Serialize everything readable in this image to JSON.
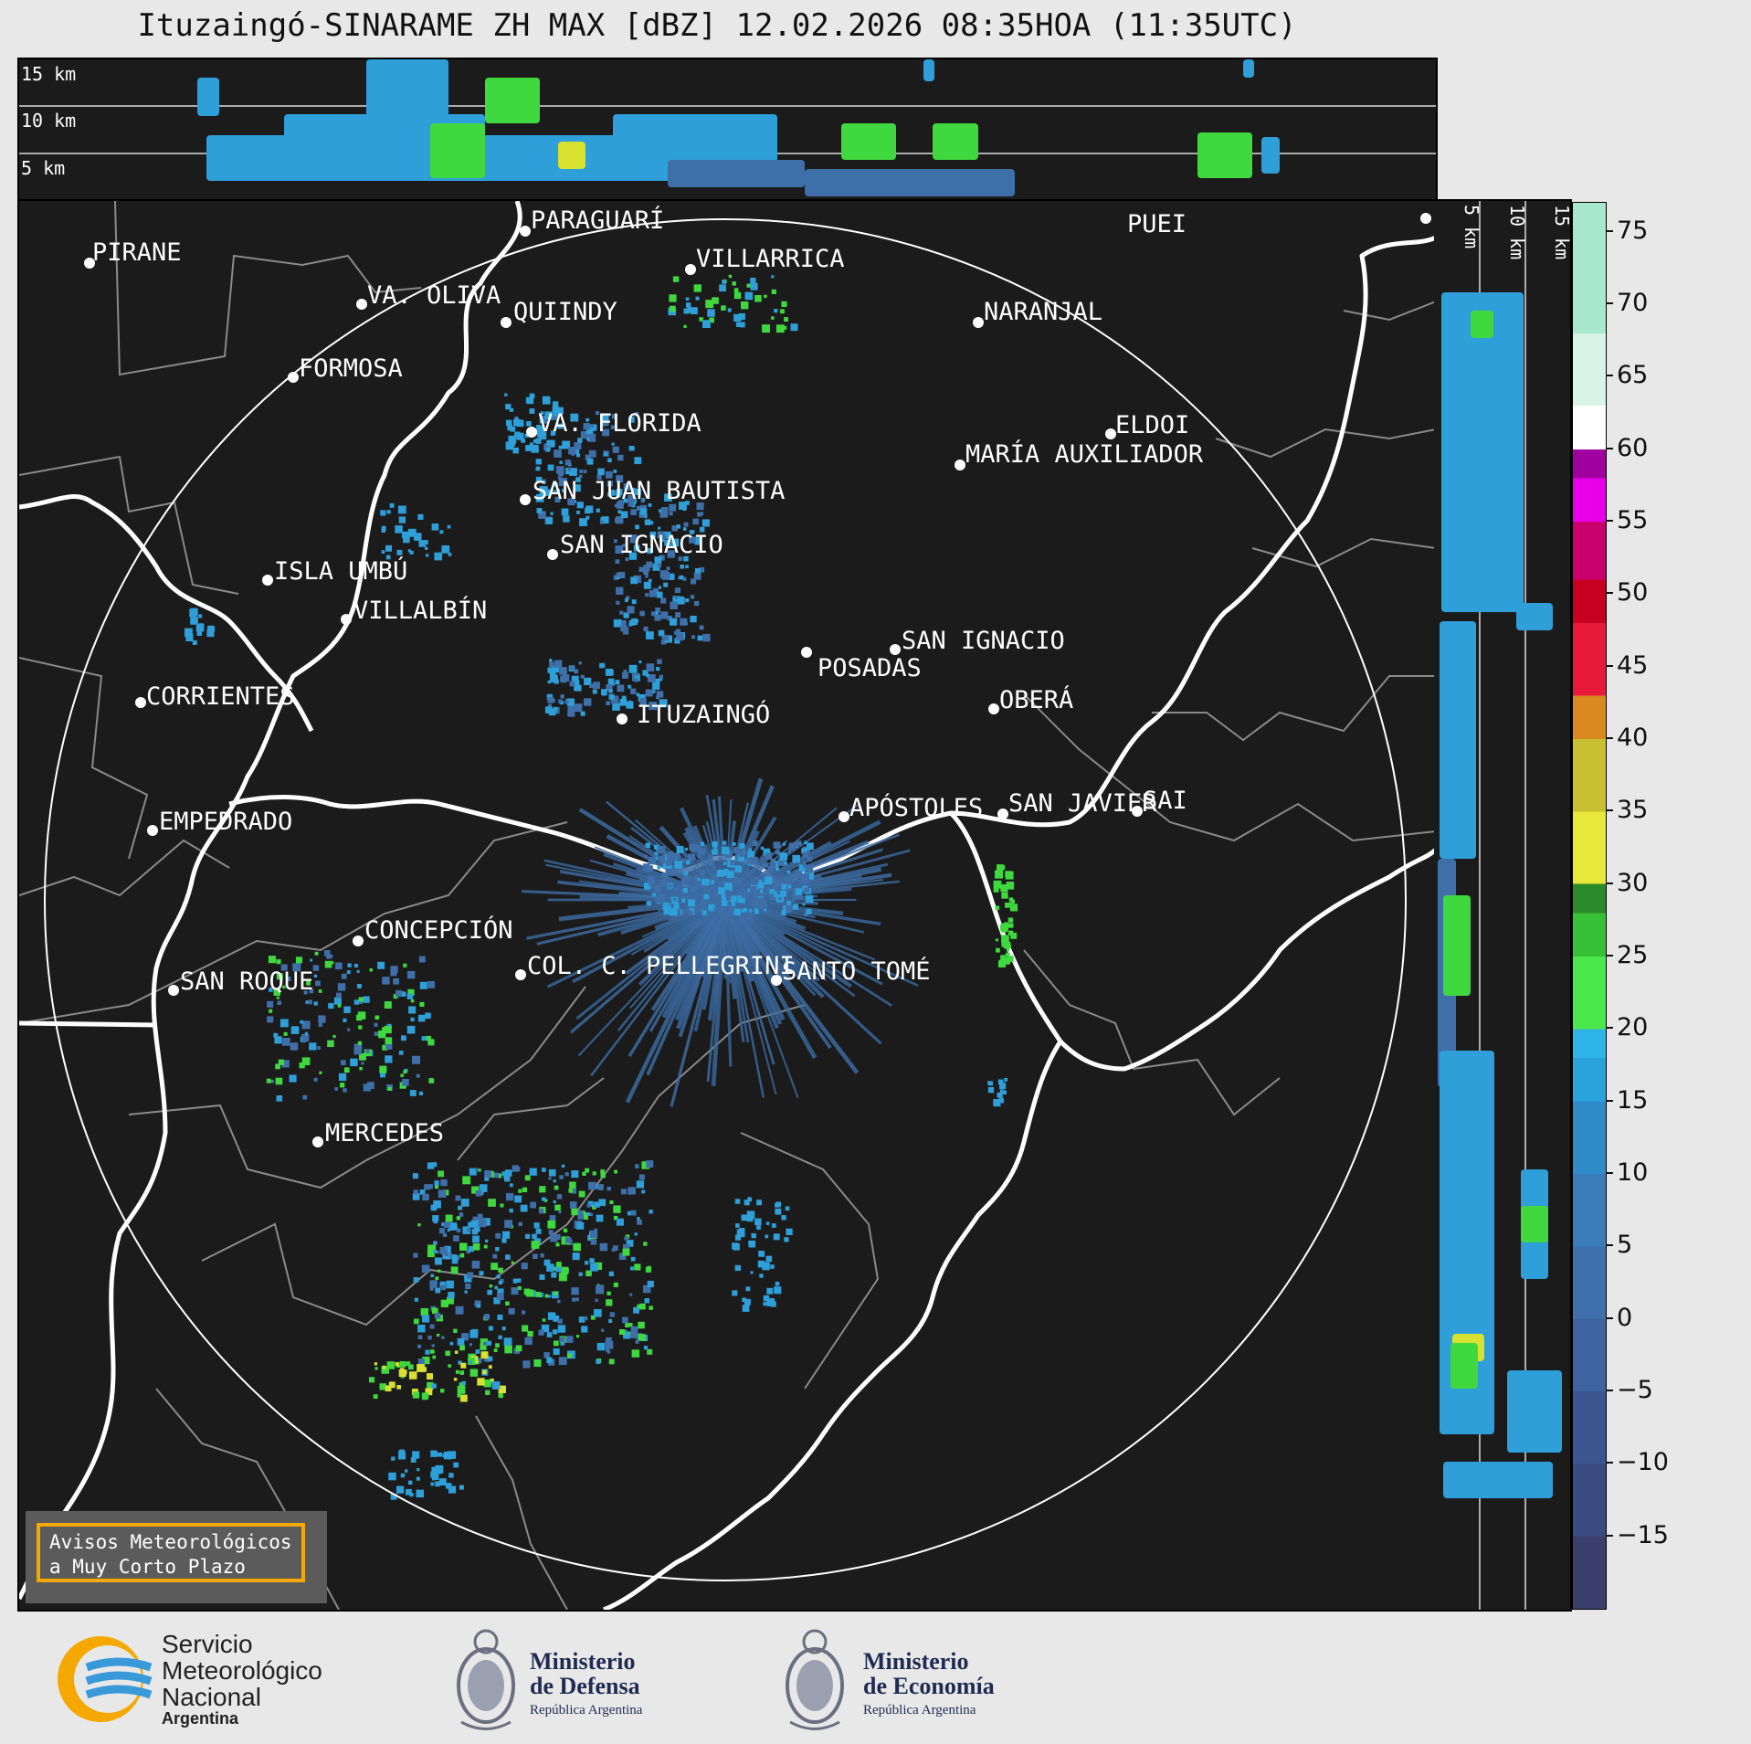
{
  "title": "Ituzaingó-SINARAME ZH MAX [dBZ] 12.02.2026 08:35HOA (11:35UTC)",
  "top_panel": {
    "height_labels": [
      "15 km",
      "10 km",
      "5 km"
    ]
  },
  "side_panel": {
    "height_labels": [
      "5 km",
      "10 km",
      "15 km"
    ]
  },
  "colorbar": {
    "unit": "dBZ",
    "ticks": [
      "75",
      "70",
      "65",
      "60",
      "55",
      "50",
      "45",
      "40",
      "35",
      "30",
      "25",
      "20",
      "15",
      "10",
      "5",
      "0",
      "−5",
      "−10",
      "−15"
    ],
    "range": [
      -20,
      77
    ]
  },
  "cities": [
    {
      "name": "PIRANE"
    },
    {
      "name": "PARAGUARÍ"
    },
    {
      "name": "VILLARRICA"
    },
    {
      "name": "VA. OLIVA"
    },
    {
      "name": "QUIINDY"
    },
    {
      "name": "FORMOSA"
    },
    {
      "name": "NARANJAL"
    },
    {
      "name": "PUEI"
    },
    {
      "name": "VA. FLORIDA"
    },
    {
      "name": "ELDOI"
    },
    {
      "name": "MARÍA AUXILIADOR"
    },
    {
      "name": "SAN JUAN BAUTISTA"
    },
    {
      "name": "SAN IGNACIO"
    },
    {
      "name": "ISLA UMBÚ"
    },
    {
      "name": "VILLALBÍN"
    },
    {
      "name": "SAN IGNACIO"
    },
    {
      "name": "POSADAS"
    },
    {
      "name": "CORRIENTES"
    },
    {
      "name": "ITUZAINGÓ"
    },
    {
      "name": "OBERÁ"
    },
    {
      "name": "EMPEDRADO"
    },
    {
      "name": "APÓSTOLES"
    },
    {
      "name": "SAN JAVIER"
    },
    {
      "name": "SAI"
    },
    {
      "name": "CONCEPCIÓN"
    },
    {
      "name": "COL. C. PELLEGRINI"
    },
    {
      "name": "SANTO TOMÉ"
    },
    {
      "name": "SAN ROQUE"
    },
    {
      "name": "MERCEDES"
    }
  ],
  "warning_box": {
    "line1": "Avisos Meteorológicos",
    "line2": "a Muy Corto Plazo",
    "border_color": "#f5a800"
  },
  "logos": {
    "smn": {
      "line1": "Servicio",
      "line2": "Meteorológico",
      "line3": "Nacional",
      "line4": "Argentina"
    },
    "defensa": {
      "line1": "Ministerio",
      "line2": "de Defensa",
      "line3": "República Argentina"
    },
    "economia": {
      "line1": "Ministerio",
      "line2": "de Economía",
      "line3": "República Argentina"
    }
  },
  "colors": {
    "background": "#1b1b1b",
    "borders": "#808080",
    "rivers": "#ffffff",
    "echo_low": "#3f6fa8",
    "echo_mid": "#2e9fd8",
    "echo_green": "#3fd93f",
    "echo_yellow": "#d8e030"
  }
}
